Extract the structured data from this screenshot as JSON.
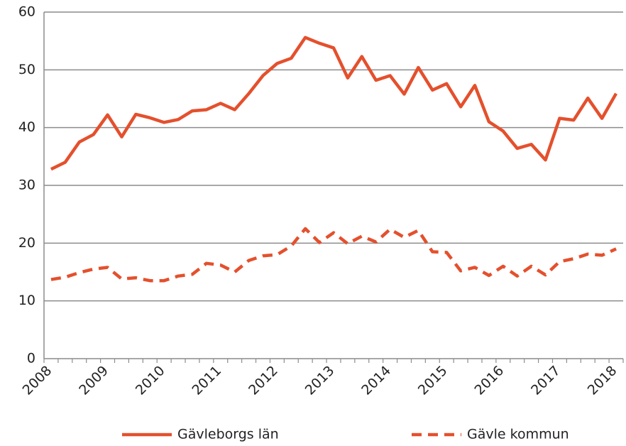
{
  "chart_data": {
    "type": "line",
    "categories": [
      "2008",
      null,
      null,
      null,
      "2009",
      null,
      null,
      null,
      "2010",
      null,
      null,
      null,
      "2011",
      null,
      null,
      null,
      "2012",
      null,
      null,
      null,
      "2013",
      null,
      null,
      null,
      "2014",
      null,
      null,
      null,
      "2015",
      null,
      null,
      null,
      "2016",
      null,
      null,
      null,
      "2017",
      null,
      null,
      null,
      "2018"
    ],
    "series": [
      {
        "name": "Gävleborgs län",
        "color": "#e4502d",
        "dash": false,
        "values": [
          32.8,
          34.0,
          37.5,
          38.8,
          42.2,
          38.4,
          42.3,
          41.7,
          40.9,
          41.4,
          42.9,
          43.1,
          44.2,
          43.1,
          45.9,
          49.0,
          51.1,
          52.0,
          55.6,
          54.6,
          53.8,
          48.6,
          52.3,
          48.2,
          49.0,
          45.8,
          50.4,
          46.5,
          47.6,
          43.6,
          47.3,
          41.0,
          39.4,
          36.4,
          37.1,
          34.4,
          41.6,
          41.3,
          45.1,
          41.6,
          45.9
        ]
      },
      {
        "name": "Gävle kommun",
        "color": "#e4502d",
        "dash": true,
        "values": [
          13.7,
          14.1,
          14.9,
          15.5,
          15.8,
          13.8,
          14.0,
          13.5,
          13.5,
          14.3,
          14.6,
          16.5,
          16.2,
          15.0,
          17.0,
          17.8,
          18.0,
          19.5,
          22.5,
          20.1,
          21.8,
          19.9,
          21.2,
          20.2,
          22.4,
          21.0,
          22.2,
          18.5,
          18.4,
          15.2,
          15.8,
          14.4,
          16.0,
          14.3,
          16.0,
          14.5,
          16.8,
          17.3,
          18.1,
          17.9,
          19.0
        ]
      }
    ],
    "ylim": [
      0,
      60
    ],
    "yticks": [
      0,
      10,
      20,
      30,
      40,
      50,
      60
    ],
    "grid": true,
    "legend": "bottom"
  }
}
